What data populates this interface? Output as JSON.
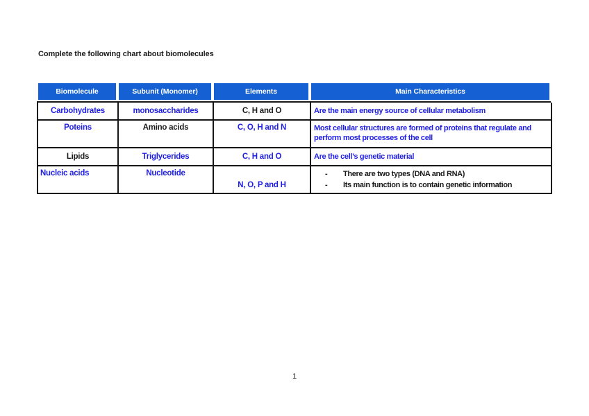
{
  "document": {
    "title": "Complete the following chart about biomolecules",
    "page_number": "1"
  },
  "colors": {
    "header-bg": "#1560d2",
    "blue-text": "#1e1ee6",
    "black-text": "#1a1a1a",
    "border": "#161616"
  },
  "table": {
    "headers": [
      "Biomolecule",
      "Subunit (Monomer)",
      "Elements",
      "Main Characteristics"
    ],
    "bullet_char": "-",
    "rows": [
      {
        "biomolecule": "Carbohydrates",
        "subunit": "monosaccharides",
        "elements": "C, H and O",
        "characteristics": "Are the main energy source of cellular metabolism"
      },
      {
        "biomolecule": "Poteins",
        "subunit": "Amino acids",
        "elements": "C, O, H and N",
        "characteristics": "Most cellular structures are formed of proteins that regulate and perform most processes of the cell"
      },
      {
        "biomolecule": "Lipids",
        "subunit": "Triglycerides",
        "elements": "C, H and O",
        "characteristics": "Are the cell’s genetic material"
      },
      {
        "biomolecule": "Nucleic acids",
        "subunit": "Nucleotide",
        "elements": "N, O, P and H",
        "characteristics_list": [
          "There are two types (DNA and RNA)",
          "Its main function is to contain genetic information"
        ]
      }
    ]
  }
}
